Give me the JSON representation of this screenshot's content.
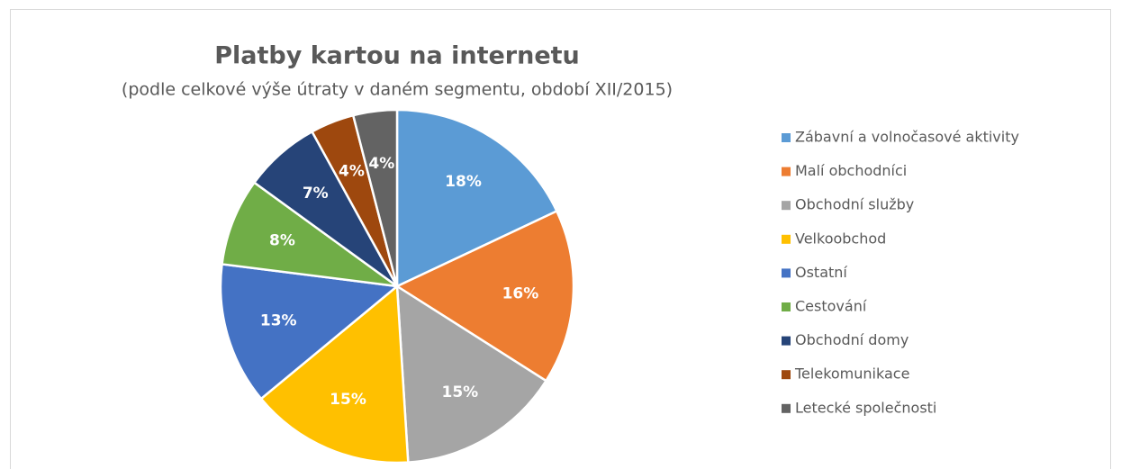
{
  "chart_data": {
    "type": "pie",
    "title": "Platby kartou na internetu",
    "subtitle": "(podle celkové výše útraty v daném segmentu, období XII/2015)",
    "categories": [
      "Zábavní a volnočasové aktivity",
      "Malí obchodníci",
      "Obchodní služby",
      "Velkoobchod",
      "Ostatní",
      "Cestování",
      "Obchodní domy",
      "Telekomunikace",
      "Letecké společnosti"
    ],
    "values": [
      18,
      16,
      15,
      15,
      13,
      8,
      7,
      4,
      4
    ],
    "value_labels": [
      "18%",
      "16%",
      "15%",
      "15%",
      "13%",
      "8%",
      "7%",
      "4%",
      "4%"
    ],
    "colors": [
      "#5b9bd5",
      "#ed7d31",
      "#a5a5a5",
      "#ffc000",
      "#4472c4",
      "#70ad47",
      "#264478",
      "#9e480e",
      "#636363"
    ],
    "legend": "right"
  }
}
